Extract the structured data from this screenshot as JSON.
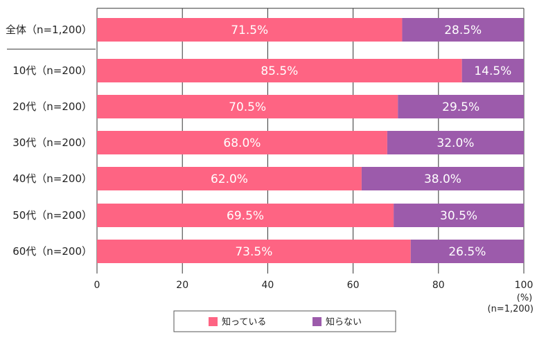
{
  "chart_data": {
    "type": "bar",
    "orientation": "horizontal",
    "stacked": true,
    "categories": [
      "全体（n=1,200）",
      "10代（n=200）",
      "20代（n=200）",
      "30代（n=200）",
      "40代（n=200）",
      "50代（n=200）",
      "60代（n=200）"
    ],
    "series": [
      {
        "name": "知っている",
        "color": "#fe6483",
        "values": [
          71.5,
          85.5,
          70.5,
          68.0,
          62.0,
          69.5,
          73.5
        ],
        "labels": [
          "71.5%",
          "85.5%",
          "70.5%",
          "68.0%",
          "62.0%",
          "69.5%",
          "73.5%"
        ]
      },
      {
        "name": "知らない",
        "color": "#9c5bab",
        "values": [
          28.5,
          14.5,
          29.5,
          32.0,
          38.0,
          30.5,
          26.5
        ],
        "labels": [
          "28.5%",
          "14.5%",
          "29.5%",
          "32.0%",
          "38.0%",
          "30.5%",
          "26.5%"
        ]
      }
    ],
    "xlim": [
      0,
      100
    ],
    "xticks": [
      "0",
      "20",
      "40",
      "60",
      "80",
      "100"
    ],
    "xlabel": "(%)",
    "note": "(n=1,200)",
    "grid": true,
    "legend": "bottom-center"
  }
}
